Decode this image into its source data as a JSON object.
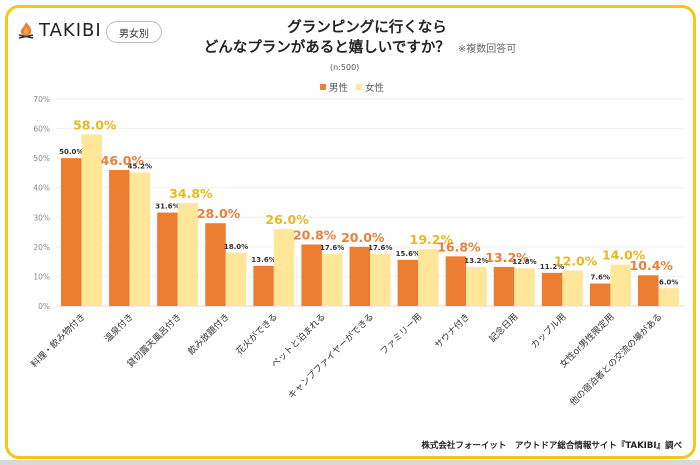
{
  "header": {
    "brand": "TAKIBI",
    "brand_icon": "campfire-icon",
    "tag": "男女別",
    "title_line1": "グランピングに行くなら",
    "title_line2": "どんなプランがあると嬉しいですか？",
    "note": "※複数回答可",
    "sample": "(n:500)"
  },
  "colors": {
    "male": "#ED7D31",
    "female": "#FFE699",
    "male_highlight_text": "#E8803A",
    "female_highlight_text": "#E8B820",
    "frame": "#F5C518"
  },
  "footer": {
    "credit": "株式会社フォーイット　アウトドア総合情報サイト『TAKIBI』調べ"
  },
  "chart_data": {
    "type": "bar",
    "title": "グランピングに行くなら どんなプランがあると嬉しいですか？",
    "xlabel": "",
    "ylabel": "",
    "ylim": [
      0,
      70
    ],
    "yticks": [
      "0%",
      "10%",
      "20%",
      "30%",
      "40%",
      "50%",
      "60%",
      "70%"
    ],
    "grid": true,
    "legend": "top-center",
    "categories": [
      "料理・飲み物付き",
      "温泉付き",
      "貸切露天風呂付き",
      "飲み放題付き",
      "花火ができる",
      "ペットと泊まれる",
      "キャンプファイヤーができる",
      "ファミリー用",
      "サウナ付き",
      "記念日用",
      "カップル用",
      "女性or男性限定用",
      "他の宿泊者との交流の場がある"
    ],
    "series": [
      {
        "name": "男性",
        "values": [
          50.0,
          46.0,
          31.6,
          28.0,
          13.6,
          20.8,
          20.0,
          15.6,
          16.8,
          13.2,
          11.2,
          7.6,
          10.4
        ]
      },
      {
        "name": "女性",
        "values": [
          58.0,
          45.2,
          34.8,
          18.0,
          26.0,
          17.6,
          17.6,
          19.2,
          13.2,
          12.8,
          12.0,
          14.0,
          6.0
        ]
      }
    ],
    "labels": {
      "男性": [
        "50.0%",
        "46.0%",
        "31.6%",
        "28.0%",
        "13.6%",
        "20.8%",
        "20.0%",
        "15.6%",
        "16.8%",
        "13.2%",
        "11.2%",
        "7.6%",
        "10.4%"
      ],
      "女性": [
        "58.0%",
        "45.2%",
        "34.8%",
        "18.0%",
        "26.0%",
        "17.6%",
        "17.6%",
        "19.2%",
        "13.2%",
        "12.8%",
        "12.0%",
        "14.0%",
        "6.0%"
      ]
    }
  }
}
